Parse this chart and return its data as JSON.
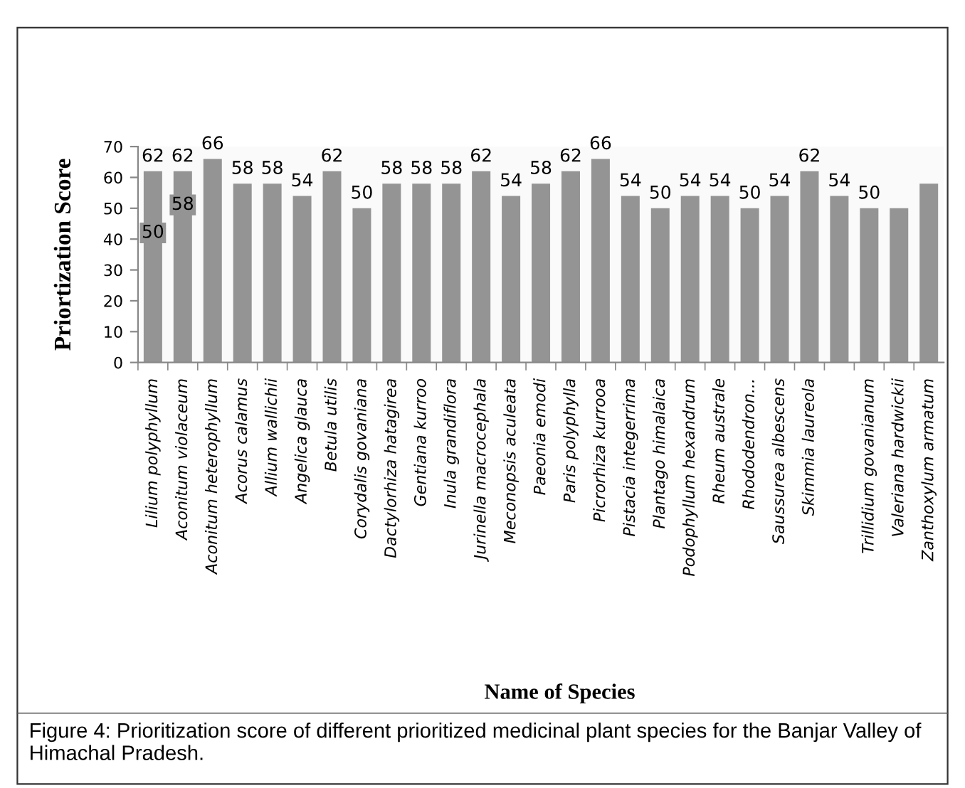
{
  "chart_data": {
    "type": "bar",
    "xlabel": "Name of Species",
    "ylabel": "Priortization Score",
    "categories": [
      "Lilium polyphyllum",
      "Aconitum violaceum",
      "Aconitum heterophyllum",
      "Acorus calamus",
      "Allium wallichii",
      "Angelica glauca",
      "Betula utilis",
      "Corydalis govaniana",
      "Dactylorhiza hatagirea",
      "Gentiana kurroo",
      "Inula grandiflora",
      "Jurinella macrocephala",
      "Meconopsis aculeata",
      "Paeonia emodi",
      "Paris polyphylla",
      "Picrorhiza kurrooa",
      "Pistacia integerrima",
      "Plantago himalaica",
      "Podophyllum hexandrum",
      "Rheum australe",
      "Rhododendron...",
      "Saussurea albescens",
      "Skimmia laureola",
      null,
      "Trillidium govanianum",
      "Valeriana hardwickii",
      "Zanthoxylum armatum"
    ],
    "values": [
      62,
      62,
      66,
      58,
      58,
      54,
      62,
      50,
      58,
      58,
      58,
      62,
      54,
      58,
      62,
      66,
      54,
      50,
      54,
      54,
      50,
      54,
      62,
      54,
      50,
      50,
      58
    ],
    "value_labels": [
      "62",
      "62",
      "66",
      "58",
      "58",
      "54",
      "62",
      "50",
      "58",
      "58",
      "58",
      "62",
      "54",
      "58",
      "62",
      "66",
      "54",
      "50",
      "54",
      "54",
      "50",
      "54",
      "62",
      "54",
      "50",
      null,
      null
    ],
    "color": "#949494",
    "ylim": [
      0,
      70
    ],
    "yticks": [
      0,
      10,
      20,
      30,
      40,
      50,
      60,
      70
    ],
    "grid": false,
    "legend": false,
    "annotations": [
      "50",
      "58",
      "Figure 4: Prioritization score of different prioritized medicinal plant species for the Banjar Valley of Himachal Pradesh."
    ]
  }
}
